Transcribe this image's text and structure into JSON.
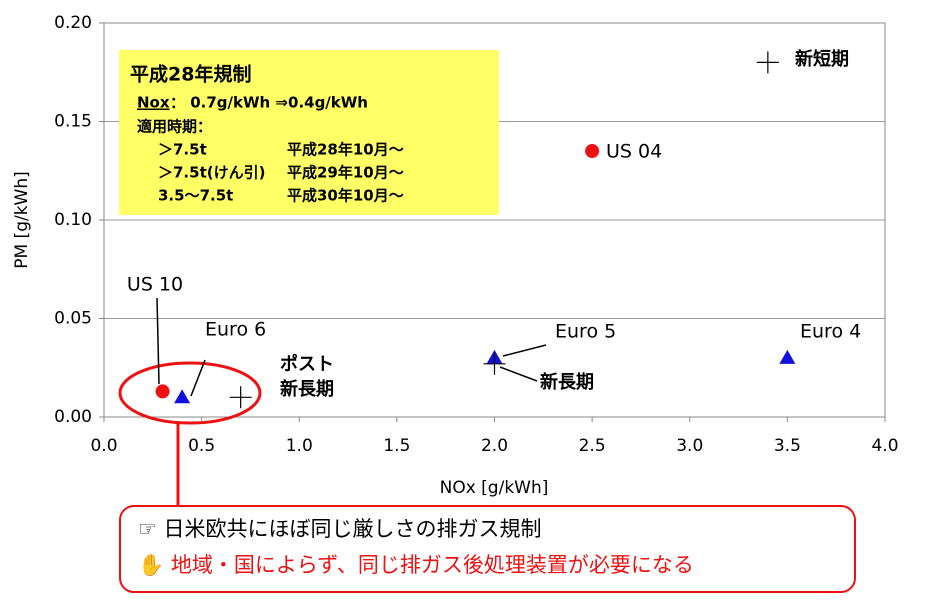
{
  "chart_data": {
    "type": "scatter",
    "xlabel": "NOx [g/kWh]",
    "ylabel": "PM [g/kWh]",
    "xlim": [
      0,
      4
    ],
    "xticks": [
      {
        "value": 0,
        "label": "0.0"
      },
      {
        "value": 0.5,
        "label": "0.5"
      },
      {
        "value": 1,
        "label": "1.0"
      },
      {
        "value": 1.5,
        "label": "1.5"
      },
      {
        "value": 2,
        "label": "2.0"
      },
      {
        "value": 2.5,
        "label": "2.5"
      },
      {
        "value": 3,
        "label": "3.0"
      },
      {
        "value": 3.5,
        "label": "3.5"
      },
      {
        "value": 4,
        "label": "4.0"
      }
    ],
    "ylim": [
      0,
      0.2
    ],
    "yticks": [
      {
        "value": 0,
        "label": "0.00"
      },
      {
        "value": 0.05,
        "label": "0.05"
      },
      {
        "value": 0.1,
        "label": "0.10"
      },
      {
        "value": 0.15,
        "label": "0.15"
      },
      {
        "value": 0.2,
        "label": "0.20"
      }
    ],
    "grid": true,
    "points": [
      {
        "label": "US 04",
        "x": 2.5,
        "y": 0.135,
        "marker": "circle",
        "color": "#ee1111"
      },
      {
        "label": "US 10",
        "x": 0.3,
        "y": 0.013,
        "marker": "circle",
        "color": "#ee1111"
      },
      {
        "label": "Euro 6",
        "x": 0.4,
        "y": 0.01,
        "marker": "triangle",
        "color": "#1111dd"
      },
      {
        "label": "Euro 5",
        "x": 2.0,
        "y": 0.03,
        "marker": "triangle",
        "color": "#1111dd"
      },
      {
        "label": "Euro 4",
        "x": 3.5,
        "y": 0.03,
        "marker": "triangle",
        "color": "#1111dd"
      },
      {
        "label": "新長期",
        "x": 2.0,
        "y": 0.027,
        "marker": "cross",
        "color": "#000000"
      },
      {
        "label": [
          "ポスト",
          "新長期"
        ],
        "x": 0.7,
        "y": 0.01,
        "marker": "cross",
        "color": "#000000"
      },
      {
        "label": "新短期",
        "x": 3.4,
        "y": 0.18,
        "marker": "cross",
        "color": "#000000"
      }
    ],
    "regulation": {
      "title": "平成28年規制",
      "nox_label": "Nox",
      "nox_text": "：  0.7g/kWh ⇒0.4g/kWh",
      "period_label": "適用時期：",
      "rows": [
        [
          "＞7.5t",
          "平成28年10月～"
        ],
        [
          "＞7.5t(けん引)",
          "平成29年10月～"
        ],
        [
          "3.5～7.5t",
          "平成30年10月～"
        ]
      ]
    },
    "callout": [
      "☞ 日米欧共にほぼ同じ厳しさの排ガス規制",
      "✋ 地域・国によらず、同じ排ガス後処理装置が必要になる"
    ]
  }
}
